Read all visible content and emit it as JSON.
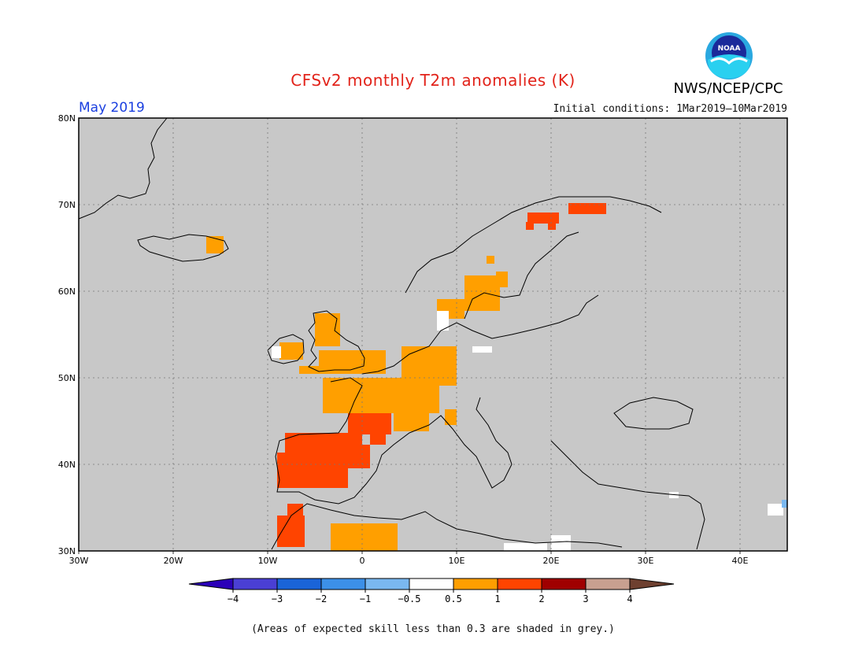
{
  "header": {
    "title": "CFSv2 monthly T2m anomalies (K)",
    "month": "May 2019",
    "initial_conditions": "Initial conditions: 1Mar2019–10Mar2019",
    "agency": "NWS/NCEP/CPC",
    "logo_text": "NOAA"
  },
  "map": {
    "lon_range": [
      -30,
      45
    ],
    "lat_range": [
      30,
      80
    ],
    "lon_labels": [
      "30W",
      "20W",
      "10W",
      "0",
      "10E",
      "20E",
      "30E",
      "40E"
    ],
    "lat_labels": [
      "30N",
      "40N",
      "50N",
      "60N",
      "70N",
      "80N"
    ],
    "background_color": "#c8c8c8"
  },
  "legend": {
    "bins": [
      {
        "color": "#2b00b8"
      },
      {
        "color": "#4a3fd4"
      },
      {
        "color": "#1a64d8"
      },
      {
        "color": "#3c90e8"
      },
      {
        "color": "#7ab8f0"
      },
      {
        "color": "#ffffff"
      },
      {
        "color": "#ff9f00"
      },
      {
        "color": "#ff4400"
      },
      {
        "color": "#a00000"
      },
      {
        "color": "#c8a090"
      },
      {
        "color": "#6e4030"
      }
    ],
    "tick_labels": [
      "−4",
      "−3",
      "−2",
      "−1",
      "−0.5",
      "0.5",
      "1",
      "2",
      "3",
      "4"
    ]
  },
  "footnote": "(Areas of expected skill less than 0.3 are shaded in grey.)",
  "anomaly_regions": [
    {
      "level": "1-2",
      "color": "#ff4400",
      "region": "Iberian Peninsula"
    },
    {
      "level": "1-2",
      "color": "#ff4400",
      "region": "Southwest France"
    },
    {
      "level": "1-2",
      "color": "#ff4400",
      "region": "Morocco"
    },
    {
      "level": "1-2",
      "color": "#ff4400",
      "region": "Northern Scandinavia"
    },
    {
      "level": "0.5-1",
      "color": "#ff9f00",
      "region": "France"
    },
    {
      "level": "0.5-1",
      "color": "#ff9f00",
      "region": "British Isles"
    },
    {
      "level": "0.5-1",
      "color": "#ff9f00",
      "region": "Benelux / Western Germany"
    },
    {
      "level": "0.5-1",
      "color": "#ff9f00",
      "region": "Southern Scandinavia"
    },
    {
      "level": "0.5-1",
      "color": "#ff9f00",
      "region": "Iceland"
    },
    {
      "level": "0.5-1",
      "color": "#ff9f00",
      "region": "Algeria"
    }
  ]
}
